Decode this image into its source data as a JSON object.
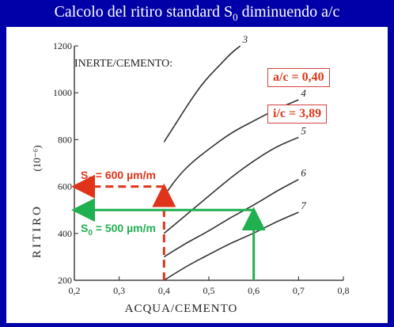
{
  "title": {
    "prefix": "Calcolo del ritiro standard S",
    "sub": "0",
    "suffix": " diminuendo a/c"
  },
  "chart_data": {
    "type": "line",
    "xlabel": "ACQUA/CEMENTO",
    "ylabel": "RITIRO",
    "ylabel_unit": "(10⁻⁶)",
    "xlim": [
      0.2,
      0.8
    ],
    "ylim": [
      200,
      1200
    ],
    "xticks": [
      "0,2",
      "0,3",
      "0,4",
      "0,5",
      "0,6",
      "0,7",
      "0,8"
    ],
    "yticks": [
      "200",
      "400",
      "600",
      "800",
      "1000",
      "1200"
    ],
    "legend_title": "INERTE/CEMENTO:",
    "series": [
      {
        "name": "3",
        "x": [
          0.4,
          0.43,
          0.46,
          0.49,
          0.52,
          0.55,
          0.57
        ],
        "y": [
          790,
          880,
          970,
          1050,
          1110,
          1170,
          1200
        ]
      },
      {
        "name": "4",
        "x": [
          0.4,
          0.43,
          0.46,
          0.5,
          0.55,
          0.6,
          0.65,
          0.7
        ],
        "y": [
          560,
          640,
          700,
          760,
          830,
          880,
          930,
          970
        ]
      },
      {
        "name": "5",
        "x": [
          0.4,
          0.45,
          0.5,
          0.55,
          0.6,
          0.65,
          0.7
        ],
        "y": [
          400,
          480,
          560,
          640,
          710,
          770,
          810
        ]
      },
      {
        "name": "6",
        "x": [
          0.4,
          0.45,
          0.5,
          0.55,
          0.6,
          0.65,
          0.7
        ],
        "y": [
          300,
          360,
          410,
          470,
          520,
          580,
          630
        ]
      },
      {
        "name": "7",
        "x": [
          0.4,
          0.45,
          0.5,
          0.55,
          0.6,
          0.65,
          0.7
        ],
        "y": [
          200,
          260,
          310,
          360,
          400,
          450,
          490
        ]
      }
    ],
    "annotations": {
      "ac_box": "a/c = 0,40",
      "ic_box": "i/c = 3,89",
      "s0_red": {
        "prefix": "S",
        "sub": "0",
        "text": " = 600 µm/m",
        "x": 0.4,
        "y": 600,
        "color": "#e0341a"
      },
      "s0_green": {
        "prefix": "S",
        "sub": "0",
        "text": " = 500 µm/m",
        "x": 0.6,
        "y": 500,
        "color": "#20b050"
      }
    }
  }
}
